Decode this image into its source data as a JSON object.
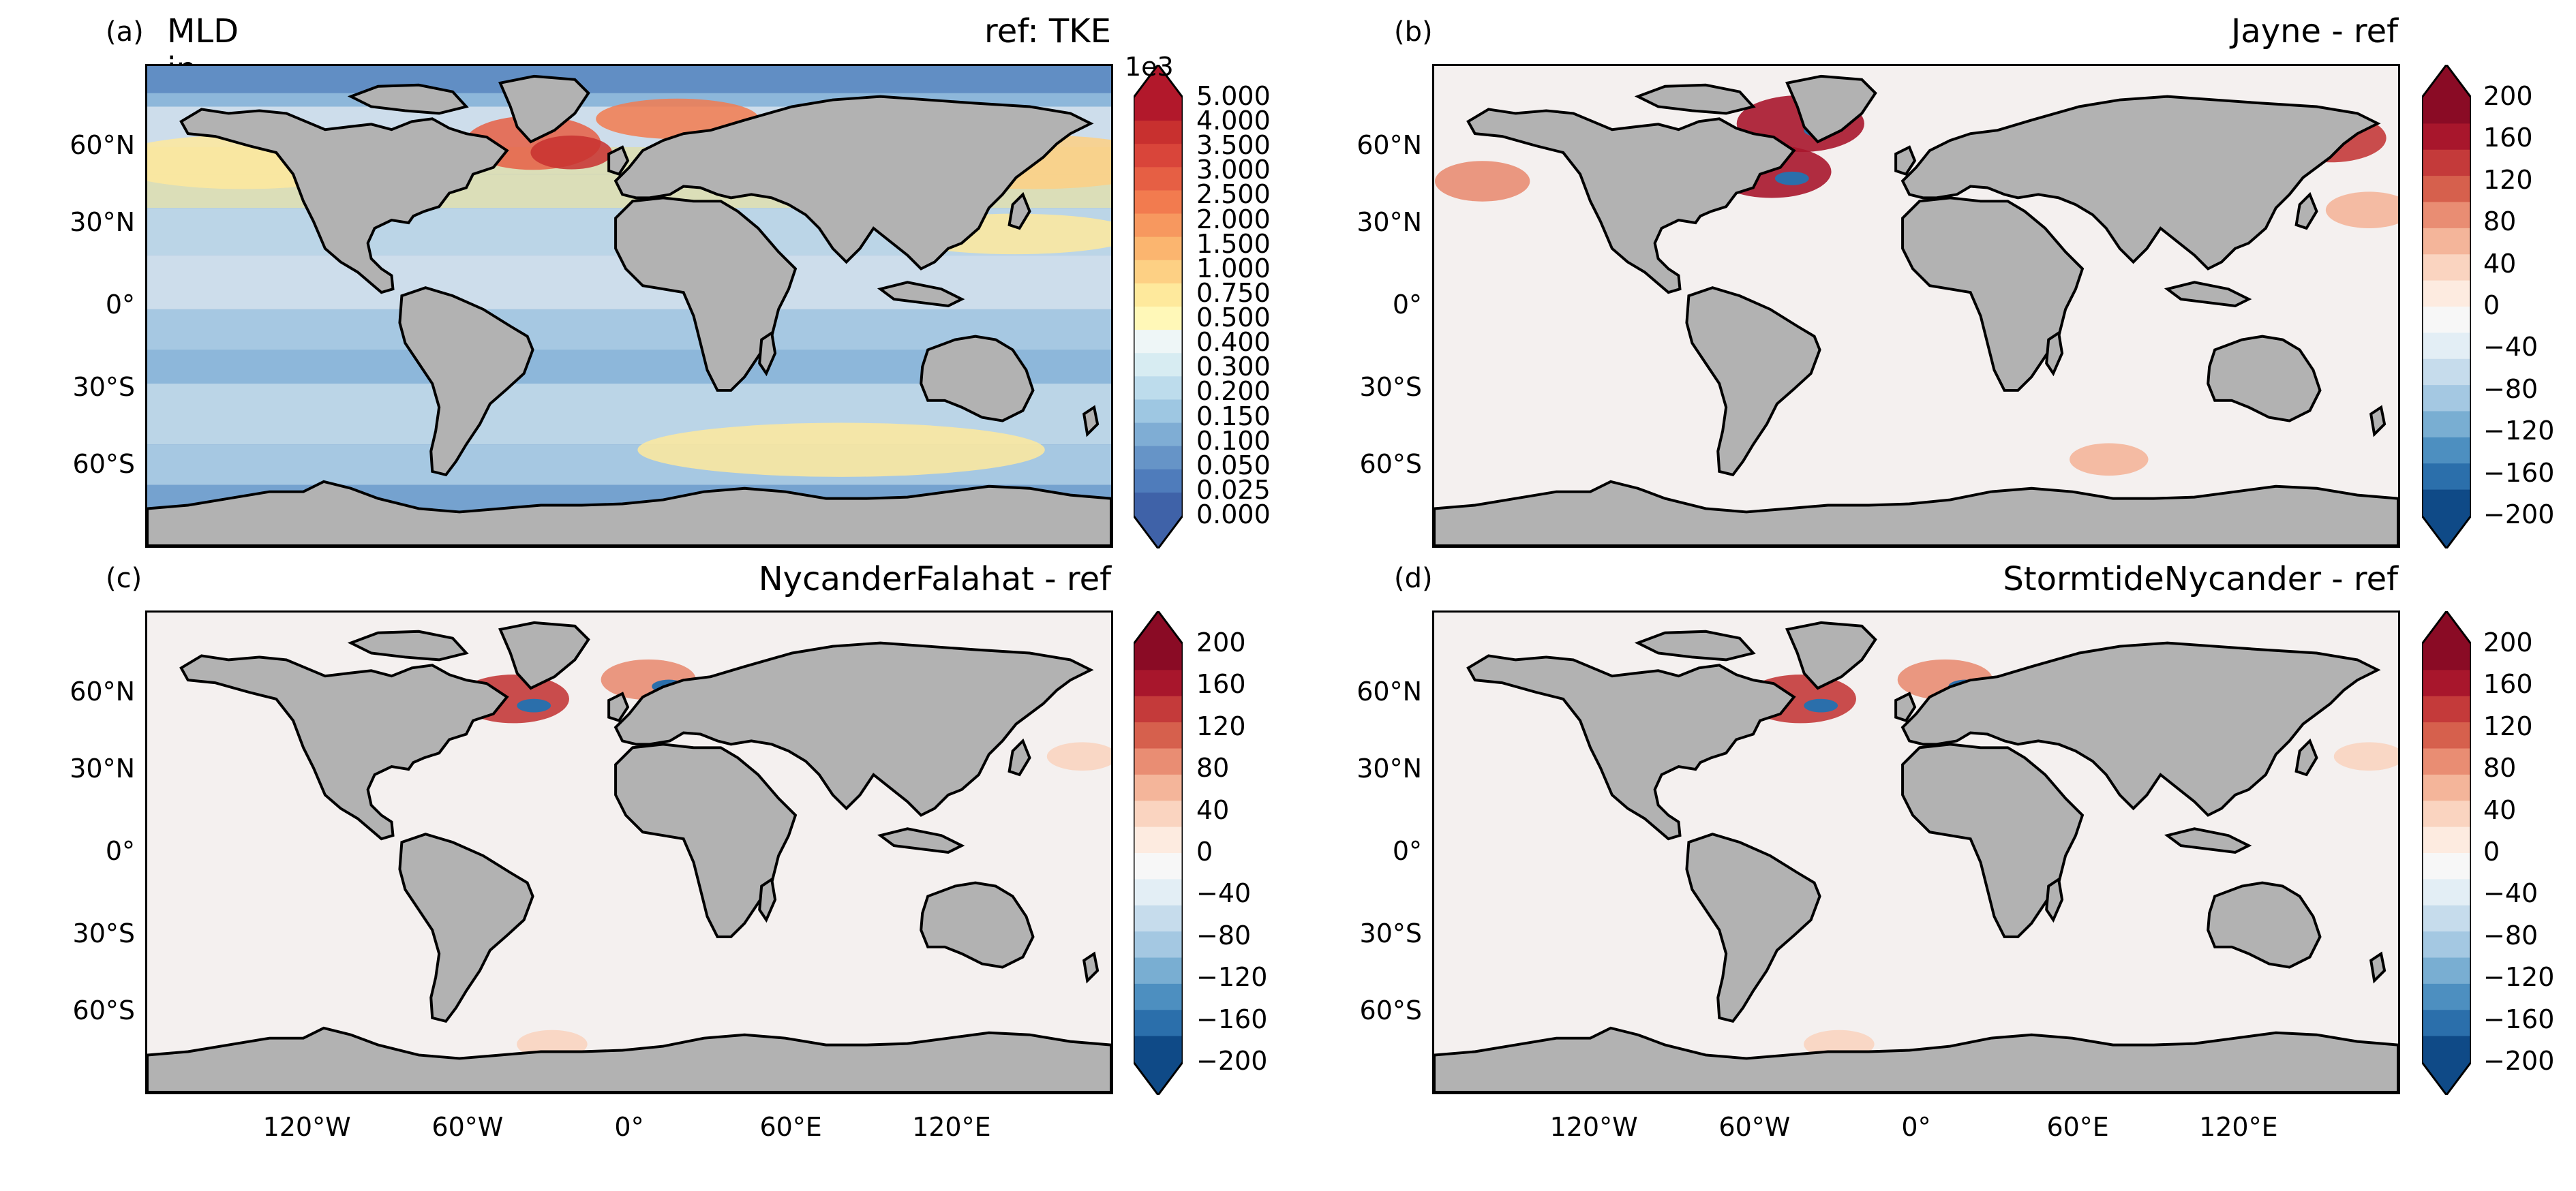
{
  "panels": [
    {
      "label": "(a)",
      "title_left": "MLD in Mar [m]",
      "title_right": "ref: TKE",
      "kind": "abs"
    },
    {
      "label": "(b)",
      "title_left": "",
      "title_right": "Jayne - ref",
      "kind": "diff",
      "anom": [
        [
          0.38,
          0.12,
          0.9
        ],
        [
          0.35,
          0.22,
          0.8
        ],
        [
          0.93,
          0.15,
          0.7
        ],
        [
          0.05,
          0.24,
          0.5
        ],
        [
          0.15,
          0.94,
          0.6
        ],
        [
          0.42,
          0.96,
          0.5
        ],
        [
          0.97,
          0.94,
          0.4
        ],
        [
          0.97,
          0.3,
          0.4
        ],
        [
          0.7,
          0.82,
          0.3
        ]
      ]
    },
    {
      "label": "(c)",
      "title_left": "",
      "title_right": "NycanderFalahat - ref",
      "kind": "diff",
      "anom": [
        [
          0.38,
          0.18,
          0.7
        ],
        [
          0.52,
          0.14,
          0.5
        ],
        [
          0.97,
          0.3,
          0.2
        ],
        [
          0.42,
          0.9,
          0.2
        ]
      ]
    },
    {
      "label": "(d)",
      "title_left": "",
      "title_right": "StormtideNycander - ref",
      "kind": "diff",
      "anom": [
        [
          0.38,
          0.18,
          0.7
        ],
        [
          0.53,
          0.14,
          0.5
        ],
        [
          0.97,
          0.3,
          0.2
        ],
        [
          0.42,
          0.9,
          0.2
        ]
      ]
    }
  ],
  "y_ticks": [
    "60°N",
    "30°N",
    "0°",
    "30°S",
    "60°S"
  ],
  "x_ticks": [
    "120°W",
    "60°W",
    "0°",
    "60°E",
    "120°E"
  ],
  "cbar_abs": {
    "exponent": "1e3",
    "ticks": [
      "5.000",
      "4.000",
      "3.500",
      "3.000",
      "2.500",
      "2.000",
      "1.500",
      "1.000",
      "0.750",
      "0.500",
      "0.400",
      "0.300",
      "0.200",
      "0.150",
      "0.100",
      "0.050",
      "0.025",
      "0.000"
    ],
    "colors": [
      "#b2182b",
      "#c8302f",
      "#d9453a",
      "#e65f44",
      "#f27b4f",
      "#f7985f",
      "#fbb56f",
      "#fdd084",
      "#fee99c",
      "#fff8b8",
      "#eef6f7",
      "#d7ecf2",
      "#bddcec",
      "#9ec7e2",
      "#7fadd4",
      "#6694c7",
      "#4f7cbb",
      "#3f62a8"
    ]
  },
  "cbar_diff": {
    "ticks": [
      "200",
      "160",
      "120",
      "80",
      "40",
      "0",
      "−40",
      "−80",
      "−120",
      "−160",
      "−200"
    ],
    "colors": [
      "#8a0b25",
      "#a8162c",
      "#c43a3a",
      "#d6604d",
      "#e98d73",
      "#f4b59a",
      "#fad4c0",
      "#fdebe0",
      "#f7f7f7",
      "#e3eef5",
      "#c6dcec",
      "#a4c8e2",
      "#79aed2",
      "#4d8fc0",
      "#2b6fab",
      "#0f4a87"
    ]
  },
  "colors": {
    "land": "#b2b2b2",
    "coast": "#000000"
  }
}
